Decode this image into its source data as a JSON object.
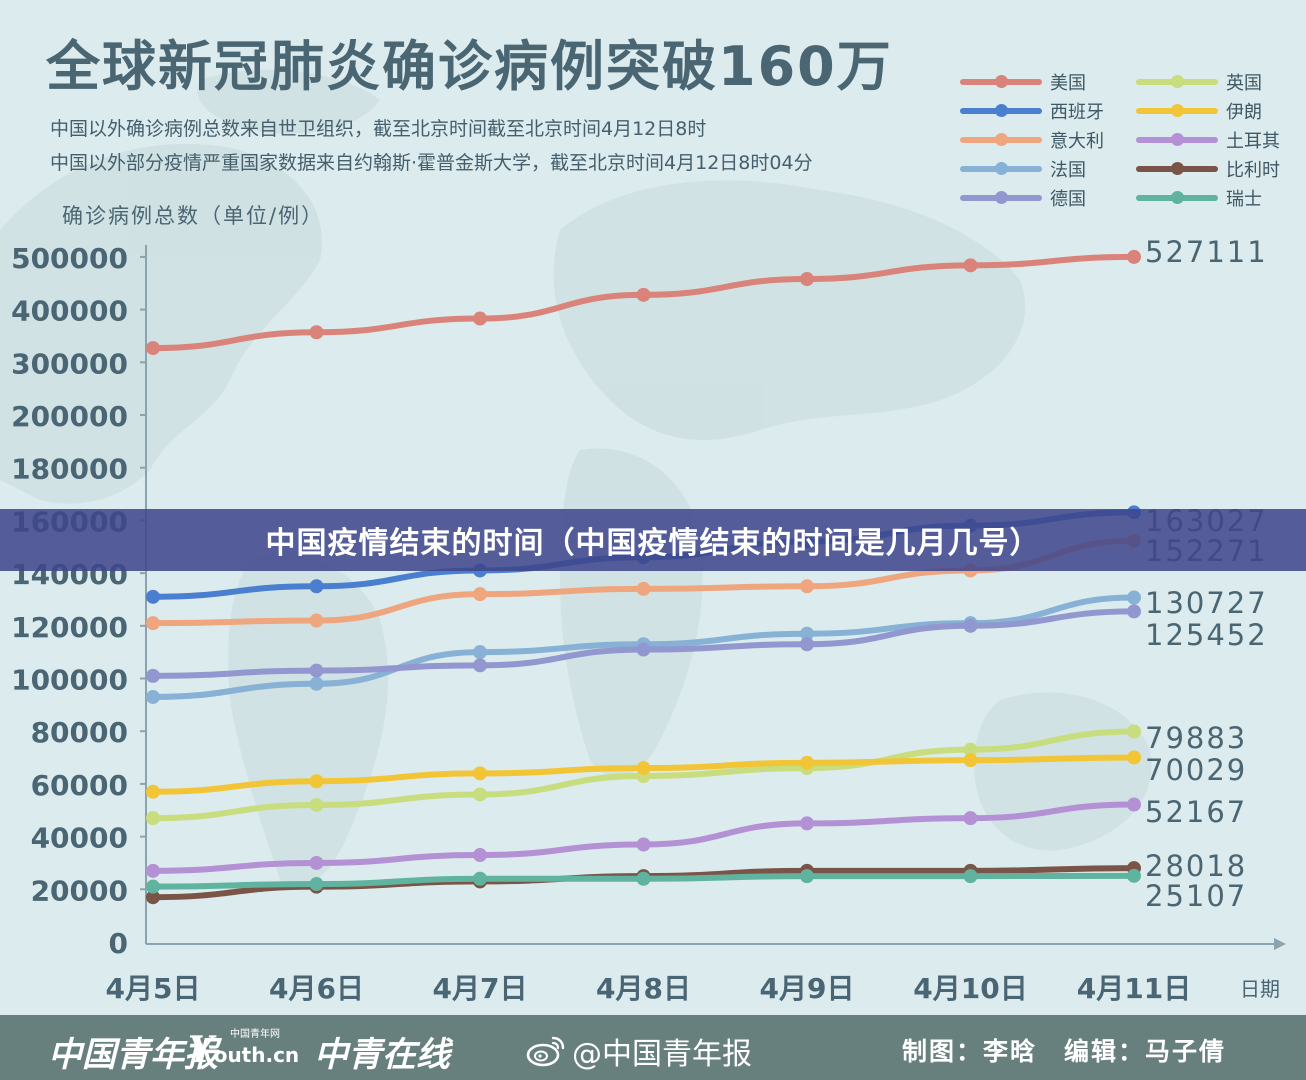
{
  "title": "全球新冠肺炎确诊病例突破160万",
  "subtitle_1": "中国以外确诊病例总数来自世卫组织，截至北京时间截至北京时间4月12日8时",
  "subtitle_2": "中国以外部分疫情严重国家数据来自约翰斯·霍普金斯大学，截至北京时间4月12日8时04分",
  "banner": "中国疫情结束的时间（中国疫情结束的时间是几月几号）",
  "footer": {
    "logo_1": "中国青年报",
    "logo_2_initial": "Y",
    "logo_2_rest": "outh.cn",
    "logo_2_small": "中国青年网",
    "logo_3": "中青在线",
    "weibo": "@中国青年报",
    "credits": "制图：李晗　编辑：马子倩"
  },
  "colors": {
    "background": "#dcebed",
    "axis": "#8aa3ae",
    "tick_text": "#4a6574",
    "banner": "#3e468a",
    "footer": "#67807e"
  },
  "chart_data": {
    "type": "line",
    "title": "全球新冠肺炎确诊病例突破160万",
    "xlabel": "日期",
    "ylabel": "确诊病例总数（单位/例）",
    "categories": [
      "4月5日",
      "4月6日",
      "4月7日",
      "4月8日",
      "4月9日",
      "4月10日",
      "4月11日"
    ],
    "y_ticks": [
      "0",
      "20000",
      "40000",
      "60000",
      "80000",
      "100000",
      "120000",
      "140000",
      "160000",
      "180000",
      "200000",
      "300000",
      "400000",
      "500000"
    ],
    "y_scale_note_hidden": true,
    "grid": false,
    "legend_position": "top-right",
    "series": [
      {
        "name": "美国",
        "color": "#d9837a",
        "values": [
          327000,
          357000,
          383000,
          428000,
          458000,
          484000,
          527111
        ],
        "end_label": "527111"
      },
      {
        "name": "西班牙",
        "color": "#4a7fcf",
        "values": [
          131000,
          135000,
          141000,
          146000,
          152000,
          158000,
          163027
        ],
        "end_label": "163027"
      },
      {
        "name": "意大利",
        "color": "#efa67f",
        "values": [
          121000,
          122000,
          132000,
          134000,
          135000,
          141000,
          152271
        ],
        "end_label": "152271"
      },
      {
        "name": "法国",
        "color": "#87b1d5",
        "values": [
          93000,
          98000,
          110000,
          113000,
          117000,
          121000,
          130727
        ],
        "end_label": "130727"
      },
      {
        "name": "德国",
        "color": "#9397cf",
        "values": [
          101000,
          103000,
          105000,
          111000,
          113000,
          120000,
          125452
        ],
        "end_label": "125452"
      },
      {
        "name": "英国",
        "color": "#c8dd7e",
        "values": [
          47000,
          52000,
          56000,
          63000,
          66000,
          73000,
          79883
        ],
        "end_label": "79883"
      },
      {
        "name": "伊朗",
        "color": "#f2c537",
        "values": [
          57000,
          61000,
          64000,
          66000,
          68000,
          69000,
          70029
        ],
        "end_label": "70029"
      },
      {
        "name": "土耳其",
        "color": "#b391d4",
        "values": [
          27000,
          30000,
          33000,
          37000,
          45000,
          47000,
          52167
        ],
        "end_label": "52167"
      },
      {
        "name": "比利时",
        "color": "#7a5447",
        "values": [
          17000,
          21000,
          23000,
          25000,
          27000,
          27000,
          28018
        ],
        "end_label": "28018"
      },
      {
        "name": "瑞士",
        "color": "#5fb39f",
        "values": [
          21000,
          22000,
          24000,
          24000,
          25000,
          25000,
          25107
        ],
        "end_label": "25107"
      }
    ]
  }
}
